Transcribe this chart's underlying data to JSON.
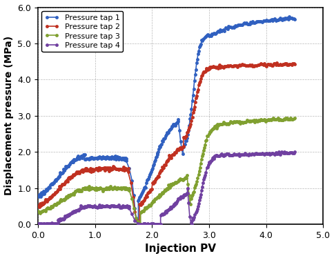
{
  "xlabel": "Injection PV",
  "ylabel": "Displacement pressure (MPa)",
  "xlim": [
    0.0,
    5.0
  ],
  "ylim": [
    0.0,
    6.0
  ],
  "xticks": [
    0.0,
    1.0,
    2.0,
    3.0,
    4.0,
    5.0
  ],
  "yticks": [
    0.0,
    1.0,
    2.0,
    3.0,
    4.0,
    5.0,
    6.0
  ],
  "legend_labels": [
    "Pressure tap 1",
    "Pressure tap 2",
    "Pressure tap 3",
    "Pressure tap 4"
  ],
  "colors": [
    "#3060C0",
    "#C03020",
    "#80A030",
    "#7040A0"
  ],
  "background_color": "#ffffff",
  "grid_color": "#888888",
  "marker": "o",
  "markersize": 2.5,
  "linewidth": 1.2
}
